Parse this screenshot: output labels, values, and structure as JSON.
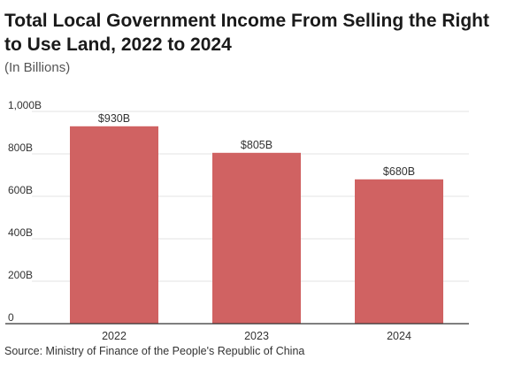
{
  "title": "Total Local Government Income From Selling the Right to Use Land, 2022 to 2024",
  "subtitle": "(In Billions)",
  "source": "Source: Ministry of Finance of the People's Republic of China",
  "colors": {
    "bar": "#d06262",
    "grid": "#e3e3e3",
    "axis": "#333333"
  },
  "chart_data": {
    "type": "bar",
    "categories": [
      "2022",
      "2023",
      "2024"
    ],
    "values": [
      930,
      805,
      680
    ],
    "data_labels": [
      "$930B",
      "$805B",
      "$680B"
    ],
    "y_ticks": [
      0,
      200,
      400,
      600,
      800,
      1000
    ],
    "y_tick_labels": [
      "0",
      "200B",
      "400B",
      "600B",
      "800B",
      "1,000B"
    ],
    "ylim": [
      0,
      1000
    ],
    "grid": true,
    "legend": "none",
    "xlabel": "",
    "ylabel": ""
  }
}
